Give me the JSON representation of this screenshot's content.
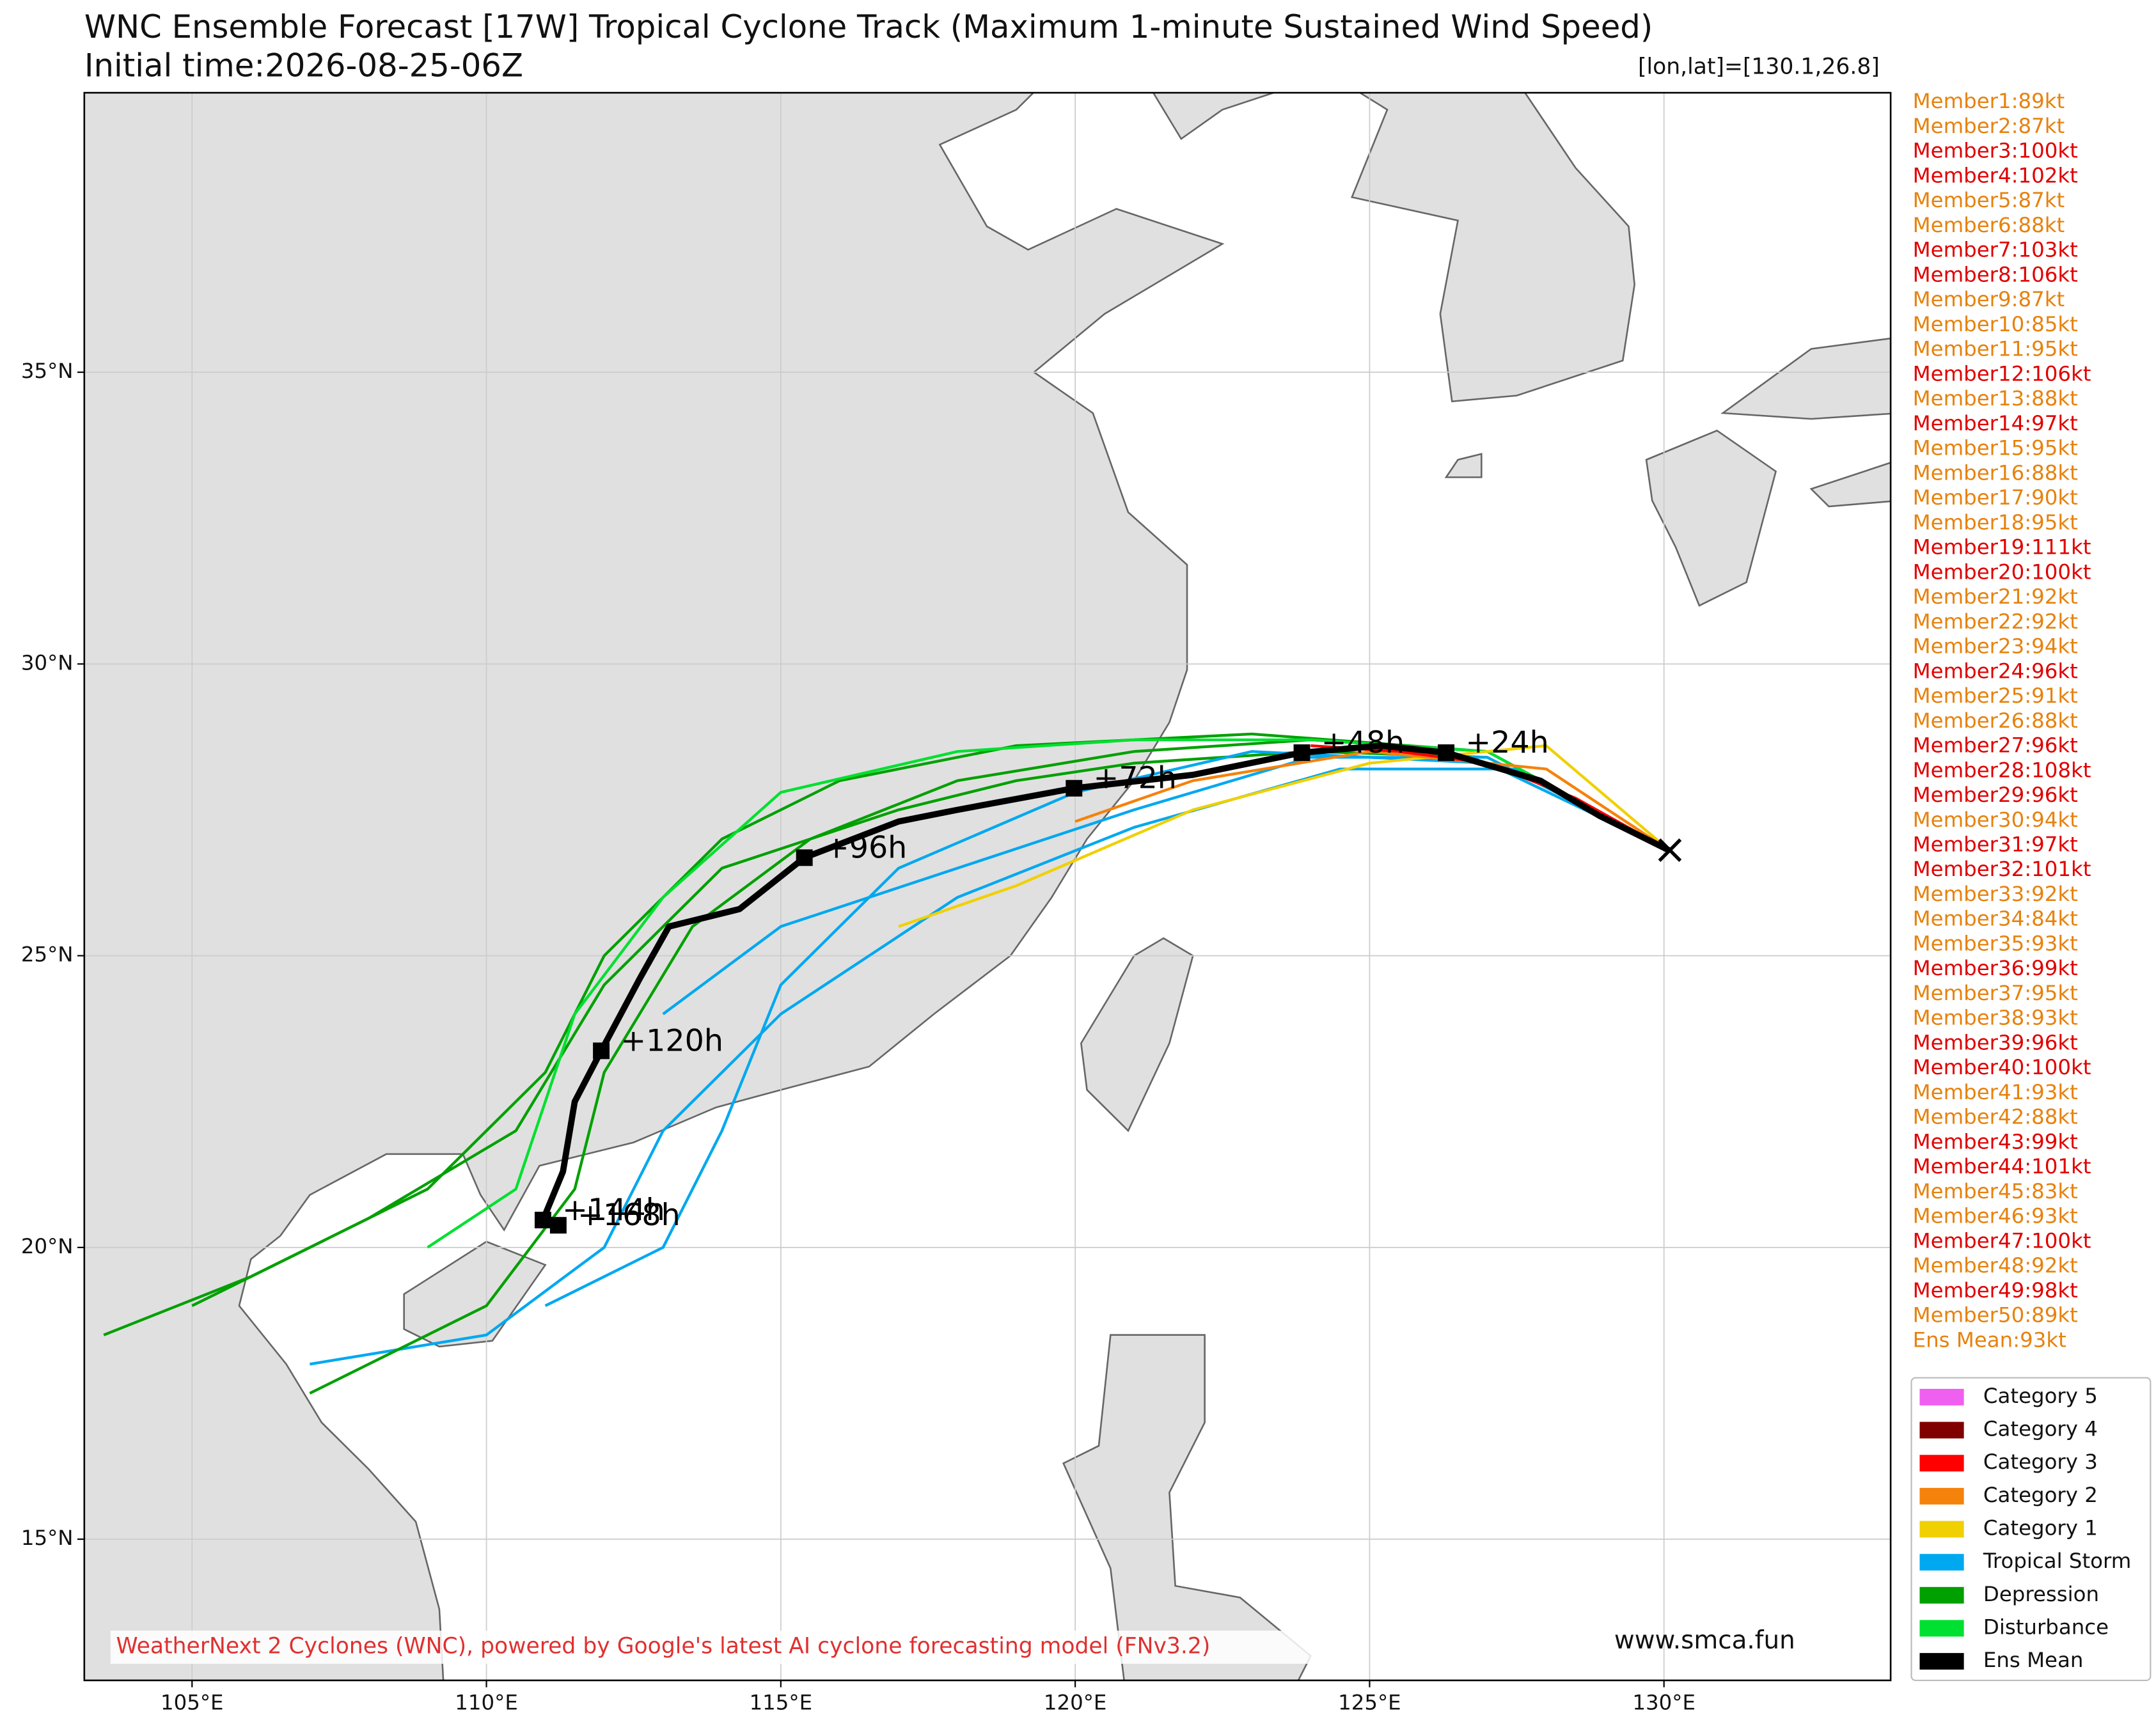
{
  "chart_data": {
    "type": "track-map",
    "title": "WNC Ensemble Forecast [17W] Tropical Cyclone Track (Maximum 1-minute Sustained Wind Speed)",
    "subtitle": "Initial time:2026-08-25-06Z",
    "position_label": "[lon,lat]=[130.1,26.8]",
    "xlim": [
      103.17,
      133.85
    ],
    "ylim": [
      12.58,
      39.79
    ],
    "xticks": [
      {
        "value": 105,
        "label": "105°E"
      },
      {
        "value": 110,
        "label": "110°E"
      },
      {
        "value": 115,
        "label": "115°E"
      },
      {
        "value": 120,
        "label": "120°E"
      },
      {
        "value": 125,
        "label": "125°E"
      },
      {
        "value": 130,
        "label": "130°E"
      }
    ],
    "yticks": [
      {
        "value": 15,
        "label": "15°N"
      },
      {
        "value": 20,
        "label": "20°N"
      },
      {
        "value": 25,
        "label": "25°N"
      },
      {
        "value": 30,
        "label": "30°N"
      },
      {
        "value": 35,
        "label": "35°N"
      }
    ],
    "grid": true,
    "member_tracks": [
      {
        "color": "#00a000",
        "lon": [
          130.1,
          127,
          124,
          121,
          119,
          117,
          114,
          112,
          110.5,
          108,
          105
        ],
        "lat": [
          26.8,
          28.4,
          28.5,
          28.3,
          28,
          27.5,
          26.5,
          24.5,
          22,
          20.5,
          19
        ]
      },
      {
        "color": "#00a8f0",
        "lon": [
          130.1,
          127,
          124,
          121,
          118,
          115,
          113
        ],
        "lat": [
          26.8,
          28.4,
          28.4,
          27.5,
          26.5,
          25.5,
          24
        ]
      },
      {
        "color": "#00a8f0",
        "lon": [
          130.1,
          127.5,
          124.5,
          121,
          118,
          115,
          113,
          112,
          110,
          107
        ],
        "lat": [
          26.8,
          28.2,
          28.2,
          27.2,
          26,
          24,
          22,
          20,
          18.5,
          18
        ]
      },
      {
        "color": "#00a000",
        "lon": [
          130.1,
          127,
          124,
          121,
          118,
          115.5,
          113.5,
          112,
          111.5,
          110,
          107
        ],
        "lat": [
          26.8,
          28.5,
          28.7,
          28.5,
          28,
          27,
          25.5,
          23,
          21,
          19,
          17.5
        ]
      },
      {
        "color": "#00a000",
        "lon": [
          130.1,
          127,
          123,
          119,
          116,
          114,
          112,
          111,
          109,
          106,
          103.5
        ],
        "lat": [
          26.8,
          28.5,
          28.8,
          28.6,
          28,
          27,
          25,
          23,
          21,
          19.5,
          18.5
        ]
      },
      {
        "color": "#00e030",
        "lon": [
          130.1,
          127,
          124,
          121,
          118,
          115,
          113,
          111.5,
          110.5,
          109
        ],
        "lat": [
          26.8,
          28.5,
          28.7,
          28.7,
          28.5,
          27.8,
          26,
          24,
          21,
          20
        ]
      },
      {
        "color": "#00a8f0",
        "lon": [
          130.1,
          127,
          123,
          120,
          117,
          115,
          114,
          113,
          111
        ],
        "lat": [
          26.8,
          28.3,
          28.5,
          27.8,
          26.5,
          24.5,
          22,
          20,
          19
        ]
      },
      {
        "color": "#f0d000",
        "lon": [
          130.1,
          128,
          125,
          122,
          119,
          117
        ],
        "lat": [
          26.8,
          28.6,
          28.3,
          27.5,
          26.2,
          25.5
        ]
      },
      {
        "color": "#f5820a",
        "lon": [
          130.1,
          128,
          125,
          122,
          120
        ],
        "lat": [
          26.8,
          28.2,
          28.5,
          28,
          27.3
        ]
      },
      {
        "color": "#ff0000",
        "lon": [
          130.1,
          128.5,
          127,
          125.5,
          124
        ],
        "lat": [
          26.8,
          27.7,
          28.3,
          28.5,
          28.6
        ]
      }
    ],
    "mean_track": {
      "color": "#000000",
      "lon": [
        130.1,
        128.9,
        127.9,
        126.3,
        125.2,
        123.85,
        122,
        119.98,
        118,
        117,
        115.4,
        114.3,
        113.1,
        112.6,
        111.95,
        111.5,
        111.3,
        110.96,
        111.22
      ],
      "lat": [
        26.8,
        27.4,
        28,
        28.48,
        28.6,
        28.48,
        28.1,
        27.87,
        27.5,
        27.3,
        26.68,
        25.8,
        25.5,
        24.6,
        23.37,
        22.5,
        21.3,
        20.47,
        20.38
      ]
    },
    "start_marker": {
      "label": "×",
      "lon": 130.1,
      "lat": 26.8
    },
    "mean_markers": [
      {
        "label": "+24h",
        "lon": 126.3,
        "lat": 28.48
      },
      {
        "label": "+48h",
        "lon": 123.85,
        "lat": 28.48
      },
      {
        "label": "+72h",
        "lon": 119.98,
        "lat": 27.87
      },
      {
        "label": "+96h",
        "lon": 115.4,
        "lat": 26.68
      },
      {
        "label": "+120h",
        "lon": 111.95,
        "lat": 23.37
      },
      {
        "label": "+144h",
        "lon": 110.96,
        "lat": 20.47
      },
      {
        "label": "+168h",
        "lon": 111.22,
        "lat": 20.38
      }
    ],
    "member_list": [
      {
        "text": "Member1:89kt",
        "color": "#e6820e"
      },
      {
        "text": "Member2:87kt",
        "color": "#e6820e"
      },
      {
        "text": "Member3:100kt",
        "color": "#e00000"
      },
      {
        "text": "Member4:102kt",
        "color": "#e00000"
      },
      {
        "text": "Member5:87kt",
        "color": "#e6820e"
      },
      {
        "text": "Member6:88kt",
        "color": "#e6820e"
      },
      {
        "text": "Member7:103kt",
        "color": "#e00000"
      },
      {
        "text": "Member8:106kt",
        "color": "#e00000"
      },
      {
        "text": "Member9:87kt",
        "color": "#e6820e"
      },
      {
        "text": "Member10:85kt",
        "color": "#e6820e"
      },
      {
        "text": "Member11:95kt",
        "color": "#e6820e"
      },
      {
        "text": "Member12:106kt",
        "color": "#e00000"
      },
      {
        "text": "Member13:88kt",
        "color": "#e6820e"
      },
      {
        "text": "Member14:97kt",
        "color": "#e00000"
      },
      {
        "text": "Member15:95kt",
        "color": "#e6820e"
      },
      {
        "text": "Member16:88kt",
        "color": "#e6820e"
      },
      {
        "text": "Member17:90kt",
        "color": "#e6820e"
      },
      {
        "text": "Member18:95kt",
        "color": "#e6820e"
      },
      {
        "text": "Member19:111kt",
        "color": "#e00000"
      },
      {
        "text": "Member20:100kt",
        "color": "#e00000"
      },
      {
        "text": "Member21:92kt",
        "color": "#e6820e"
      },
      {
        "text": "Member22:92kt",
        "color": "#e6820e"
      },
      {
        "text": "Member23:94kt",
        "color": "#e6820e"
      },
      {
        "text": "Member24:96kt",
        "color": "#e00000"
      },
      {
        "text": "Member25:91kt",
        "color": "#e6820e"
      },
      {
        "text": "Member26:88kt",
        "color": "#e6820e"
      },
      {
        "text": "Member27:96kt",
        "color": "#e00000"
      },
      {
        "text": "Member28:108kt",
        "color": "#e00000"
      },
      {
        "text": "Member29:96kt",
        "color": "#e00000"
      },
      {
        "text": "Member30:94kt",
        "color": "#e6820e"
      },
      {
        "text": "Member31:97kt",
        "color": "#e00000"
      },
      {
        "text": "Member32:101kt",
        "color": "#e00000"
      },
      {
        "text": "Member33:92kt",
        "color": "#e6820e"
      },
      {
        "text": "Member34:84kt",
        "color": "#e6820e"
      },
      {
        "text": "Member35:93kt",
        "color": "#e6820e"
      },
      {
        "text": "Member36:99kt",
        "color": "#e00000"
      },
      {
        "text": "Member37:95kt",
        "color": "#e6820e"
      },
      {
        "text": "Member38:93kt",
        "color": "#e6820e"
      },
      {
        "text": "Member39:96kt",
        "color": "#e00000"
      },
      {
        "text": "Member40:100kt",
        "color": "#e00000"
      },
      {
        "text": "Member41:93kt",
        "color": "#e6820e"
      },
      {
        "text": "Member42:88kt",
        "color": "#e6820e"
      },
      {
        "text": "Member43:99kt",
        "color": "#e00000"
      },
      {
        "text": "Member44:101kt",
        "color": "#e00000"
      },
      {
        "text": "Member45:83kt",
        "color": "#e6820e"
      },
      {
        "text": "Member46:93kt",
        "color": "#e6820e"
      },
      {
        "text": "Member47:100kt",
        "color": "#e00000"
      },
      {
        "text": "Member48:92kt",
        "color": "#e6820e"
      },
      {
        "text": "Member49:98kt",
        "color": "#e00000"
      },
      {
        "text": "Member50:89kt",
        "color": "#e6820e"
      },
      {
        "text": "Ens Mean:93kt",
        "color": "#e6820e"
      }
    ],
    "legend": [
      {
        "name": "Category 5",
        "color": "#f060f0"
      },
      {
        "name": "Category 4",
        "color": "#800000"
      },
      {
        "name": "Category 3",
        "color": "#ff0000"
      },
      {
        "name": "Category 2",
        "color": "#f5820a"
      },
      {
        "name": "Category 1",
        "color": "#f0d000"
      },
      {
        "name": "Tropical Storm",
        "color": "#00a8f0"
      },
      {
        "name": "Depression",
        "color": "#00a000"
      },
      {
        "name": "Disturbance",
        "color": "#00e030"
      },
      {
        "name": "Ens Mean",
        "color": "#000000"
      }
    ],
    "credit": "WeatherNext 2 Cyclones (WNC), powered by Google's latest AI cyclone forecasting model (FNv3.2)",
    "website": "www.smca.fun"
  }
}
